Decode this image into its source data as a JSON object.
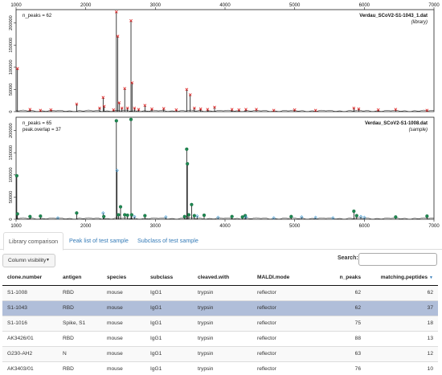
{
  "spectrum_library": {
    "n_peaks_label": "n_peaks = 62",
    "filename": "Verdau_SCoV2-S1-1043_1.dat",
    "tag": "(library)",
    "x_ticks": [
      "1000",
      "2000",
      "3000",
      "4000",
      "5000",
      "6000",
      "7000"
    ],
    "y_ticks": [
      "0",
      "50000",
      "100000",
      "150000",
      "200000"
    ],
    "peaks": [
      {
        "x": 1020,
        "y": 97000,
        "c": "red"
      },
      {
        "x": 1200,
        "y": 5000,
        "c": "red"
      },
      {
        "x": 1350,
        "y": 3000,
        "c": "red"
      },
      {
        "x": 1500,
        "y": 4000,
        "c": "red"
      },
      {
        "x": 1870,
        "y": 17000,
        "c": "red"
      },
      {
        "x": 2200,
        "y": 8000,
        "c": "red"
      },
      {
        "x": 2250,
        "y": 32000,
        "c": "red"
      },
      {
        "x": 2265,
        "y": 12000,
        "c": "red"
      },
      {
        "x": 2400,
        "y": 4000,
        "c": "red"
      },
      {
        "x": 2440,
        "y": 225000,
        "c": "red"
      },
      {
        "x": 2460,
        "y": 170000,
        "c": "red"
      },
      {
        "x": 2480,
        "y": 20000,
        "c": "red"
      },
      {
        "x": 2520,
        "y": 8000,
        "c": "red"
      },
      {
        "x": 2560,
        "y": 52000,
        "c": "red"
      },
      {
        "x": 2600,
        "y": 8000,
        "c": "red"
      },
      {
        "x": 2650,
        "y": 205000,
        "c": "red"
      },
      {
        "x": 2665,
        "y": 65000,
        "c": "red"
      },
      {
        "x": 2700,
        "y": 8000,
        "c": "red"
      },
      {
        "x": 2760,
        "y": 5000,
        "c": "red"
      },
      {
        "x": 2850,
        "y": 14000,
        "c": "red"
      },
      {
        "x": 2950,
        "y": 6000,
        "c": "red"
      },
      {
        "x": 3120,
        "y": 7000,
        "c": "red"
      },
      {
        "x": 3300,
        "y": 4000,
        "c": "red"
      },
      {
        "x": 3450,
        "y": 50000,
        "c": "red"
      },
      {
        "x": 3500,
        "y": 38000,
        "c": "red"
      },
      {
        "x": 3560,
        "y": 8000,
        "c": "red"
      },
      {
        "x": 3650,
        "y": 6000,
        "c": "red"
      },
      {
        "x": 3750,
        "y": 5000,
        "c": "red"
      },
      {
        "x": 3850,
        "y": 10000,
        "c": "red"
      },
      {
        "x": 4100,
        "y": 5000,
        "c": "red"
      },
      {
        "x": 4200,
        "y": 4000,
        "c": "red"
      },
      {
        "x": 4300,
        "y": 5000,
        "c": "red"
      },
      {
        "x": 4450,
        "y": 5000,
        "c": "red"
      },
      {
        "x": 4700,
        "y": 3000,
        "c": "red"
      },
      {
        "x": 5000,
        "y": 4000,
        "c": "red"
      },
      {
        "x": 5300,
        "y": 3000,
        "c": "red"
      },
      {
        "x": 5850,
        "y": 8000,
        "c": "red"
      },
      {
        "x": 5920,
        "y": 6000,
        "c": "red"
      },
      {
        "x": 6200,
        "y": 4000,
        "c": "red"
      },
      {
        "x": 6450,
        "y": 5000,
        "c": "red"
      },
      {
        "x": 6900,
        "y": 3000,
        "c": "red"
      }
    ]
  },
  "spectrum_sample": {
    "n_peaks_label": "n_peaks = 65",
    "overlap_label": "peak.overlap = 37",
    "filename": "Verdau_SCoV2-S1-1008.dat",
    "tag": "(sample)",
    "x_ticks": [
      "1000",
      "2000",
      "3000",
      "4000",
      "5000",
      "6000",
      "7000"
    ],
    "y_ticks": [
      "0",
      "50000",
      "100000",
      "150000",
      "200000"
    ],
    "peaks": [
      {
        "x": 1010,
        "y": 98000,
        "c": "green"
      },
      {
        "x": 1020,
        "y": 12000,
        "c": "green"
      },
      {
        "x": 1200,
        "y": 6000,
        "c": "green"
      },
      {
        "x": 1350,
        "y": 7000,
        "c": "green"
      },
      {
        "x": 1600,
        "y": 3000,
        "c": "blue"
      },
      {
        "x": 1870,
        "y": 14000,
        "c": "green"
      },
      {
        "x": 2250,
        "y": 14000,
        "c": "blue"
      },
      {
        "x": 2260,
        "y": 6000,
        "c": "green"
      },
      {
        "x": 2440,
        "y": 222000,
        "c": "green"
      },
      {
        "x": 2450,
        "y": 110000,
        "c": "blue"
      },
      {
        "x": 2470,
        "y": 10000,
        "c": "green"
      },
      {
        "x": 2500,
        "y": 28000,
        "c": "green"
      },
      {
        "x": 2560,
        "y": 10000,
        "c": "green"
      },
      {
        "x": 2600,
        "y": 9000,
        "c": "green"
      },
      {
        "x": 2650,
        "y": 225000,
        "c": "green"
      },
      {
        "x": 2660,
        "y": 10000,
        "c": "green"
      },
      {
        "x": 2700,
        "y": 6000,
        "c": "blue"
      },
      {
        "x": 2850,
        "y": 8000,
        "c": "green"
      },
      {
        "x": 3150,
        "y": 5000,
        "c": "blue"
      },
      {
        "x": 3420,
        "y": 6000,
        "c": "green"
      },
      {
        "x": 3450,
        "y": 158000,
        "c": "green"
      },
      {
        "x": 3460,
        "y": 125000,
        "c": "green"
      },
      {
        "x": 3480,
        "y": 10000,
        "c": "green"
      },
      {
        "x": 3520,
        "y": 33000,
        "c": "green"
      },
      {
        "x": 3560,
        "y": 8000,
        "c": "green"
      },
      {
        "x": 3600,
        "y": 7000,
        "c": "blue"
      },
      {
        "x": 3700,
        "y": 9000,
        "c": "green"
      },
      {
        "x": 3900,
        "y": 4000,
        "c": "blue"
      },
      {
        "x": 4100,
        "y": 6000,
        "c": "green"
      },
      {
        "x": 4250,
        "y": 5000,
        "c": "green"
      },
      {
        "x": 4290,
        "y": 8000,
        "c": "green"
      },
      {
        "x": 4300,
        "y": 5000,
        "c": "blue"
      },
      {
        "x": 4700,
        "y": 3000,
        "c": "blue"
      },
      {
        "x": 4950,
        "y": 6000,
        "c": "green"
      },
      {
        "x": 5100,
        "y": 5000,
        "c": "blue"
      },
      {
        "x": 5300,
        "y": 4000,
        "c": "blue"
      },
      {
        "x": 5550,
        "y": 3000,
        "c": "blue"
      },
      {
        "x": 5850,
        "y": 18000,
        "c": "green"
      },
      {
        "x": 5890,
        "y": 8000,
        "c": "green"
      },
      {
        "x": 5950,
        "y": 6000,
        "c": "blue"
      },
      {
        "x": 6000,
        "y": 4000,
        "c": "blue"
      },
      {
        "x": 6450,
        "y": 5000,
        "c": "green"
      },
      {
        "x": 6900,
        "y": 7000,
        "c": "green"
      }
    ]
  },
  "colors": {
    "red": "#dd2222",
    "green": "#1e8a52",
    "blue": "#3b9ad6",
    "link": "#337ab7",
    "selected_row": "#b0bed9"
  },
  "tabs": [
    {
      "label": "Library comparison",
      "active": true
    },
    {
      "label": "Peak list of test sample",
      "active": false
    },
    {
      "label": "Subclass of test sample",
      "active": false
    }
  ],
  "controls": {
    "column_visibility": "Column visibility",
    "search_label": "Search:",
    "search_value": ""
  },
  "table": {
    "columns": [
      "clone.number",
      "antigen",
      "species",
      "subclass",
      "cleaved.with",
      "MALDI.mode",
      "n_peaks",
      "matching.peptides"
    ],
    "rows": [
      [
        "S1-1008",
        "RBD",
        "mouse",
        "IgG1",
        "trypsin",
        "reflector",
        "62",
        "62"
      ],
      [
        "S1-1043",
        "RBD",
        "mouse",
        "IgG1",
        "trypsin",
        "reflector",
        "62",
        "37"
      ],
      [
        "S1-1016",
        "Spike, S1",
        "mouse",
        "IgG1",
        "trypsin",
        "reflector",
        "75",
        "18"
      ],
      [
        "AK3426/01",
        "RBD",
        "mouse",
        "IgG1",
        "trypsin",
        "reflector",
        "88",
        "13"
      ],
      [
        "G230-AH2",
        "N",
        "mouse",
        "IgG1",
        "trypsin",
        "reflector",
        "63",
        "12"
      ],
      [
        "AK3403/01",
        "RBD",
        "mouse",
        "IgG1",
        "trypsin",
        "reflector",
        "76",
        "10"
      ]
    ],
    "selected_index": 1
  }
}
